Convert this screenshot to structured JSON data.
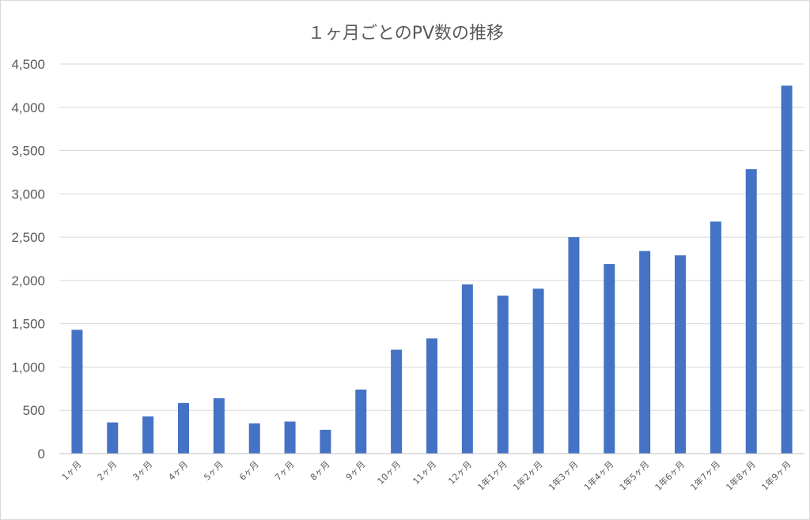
{
  "chart_data": {
    "type": "bar",
    "title": "１ヶ月ごとのPV数の推移",
    "xlabel": "",
    "ylabel": "",
    "ylim": [
      0,
      4500
    ],
    "yticks": [
      0,
      500,
      1000,
      1500,
      2000,
      2500,
      3000,
      3500,
      4000,
      4500
    ],
    "ytick_labels": [
      "0",
      "500",
      "1,000",
      "1,500",
      "2,000",
      "2,500",
      "3,000",
      "3,500",
      "4,000",
      "4,500"
    ],
    "grid": true,
    "legend": "none",
    "bar_color": "#4472c4",
    "categories": [
      "1ヶ月",
      "2ヶ月",
      "3ヶ月",
      "4ヶ月",
      "5ヶ月",
      "6ヶ月",
      "7ヶ月",
      "8ヶ月",
      "9ヶ月",
      "10ヶ月",
      "11ヶ月",
      "12ヶ月",
      "1年1ヶ月",
      "1年2ヶ月",
      "1年3ヶ月",
      "1年4ヶ月",
      "1年5ヶ月",
      "1年6ヶ月",
      "1年7ヶ月",
      "1年8ヶ月",
      "1年9ヶ月"
    ],
    "values": [
      1430,
      360,
      430,
      585,
      640,
      350,
      370,
      275,
      740,
      1200,
      1330,
      1955,
      1825,
      1905,
      2500,
      2190,
      2340,
      2290,
      2680,
      3285,
      4250
    ]
  }
}
